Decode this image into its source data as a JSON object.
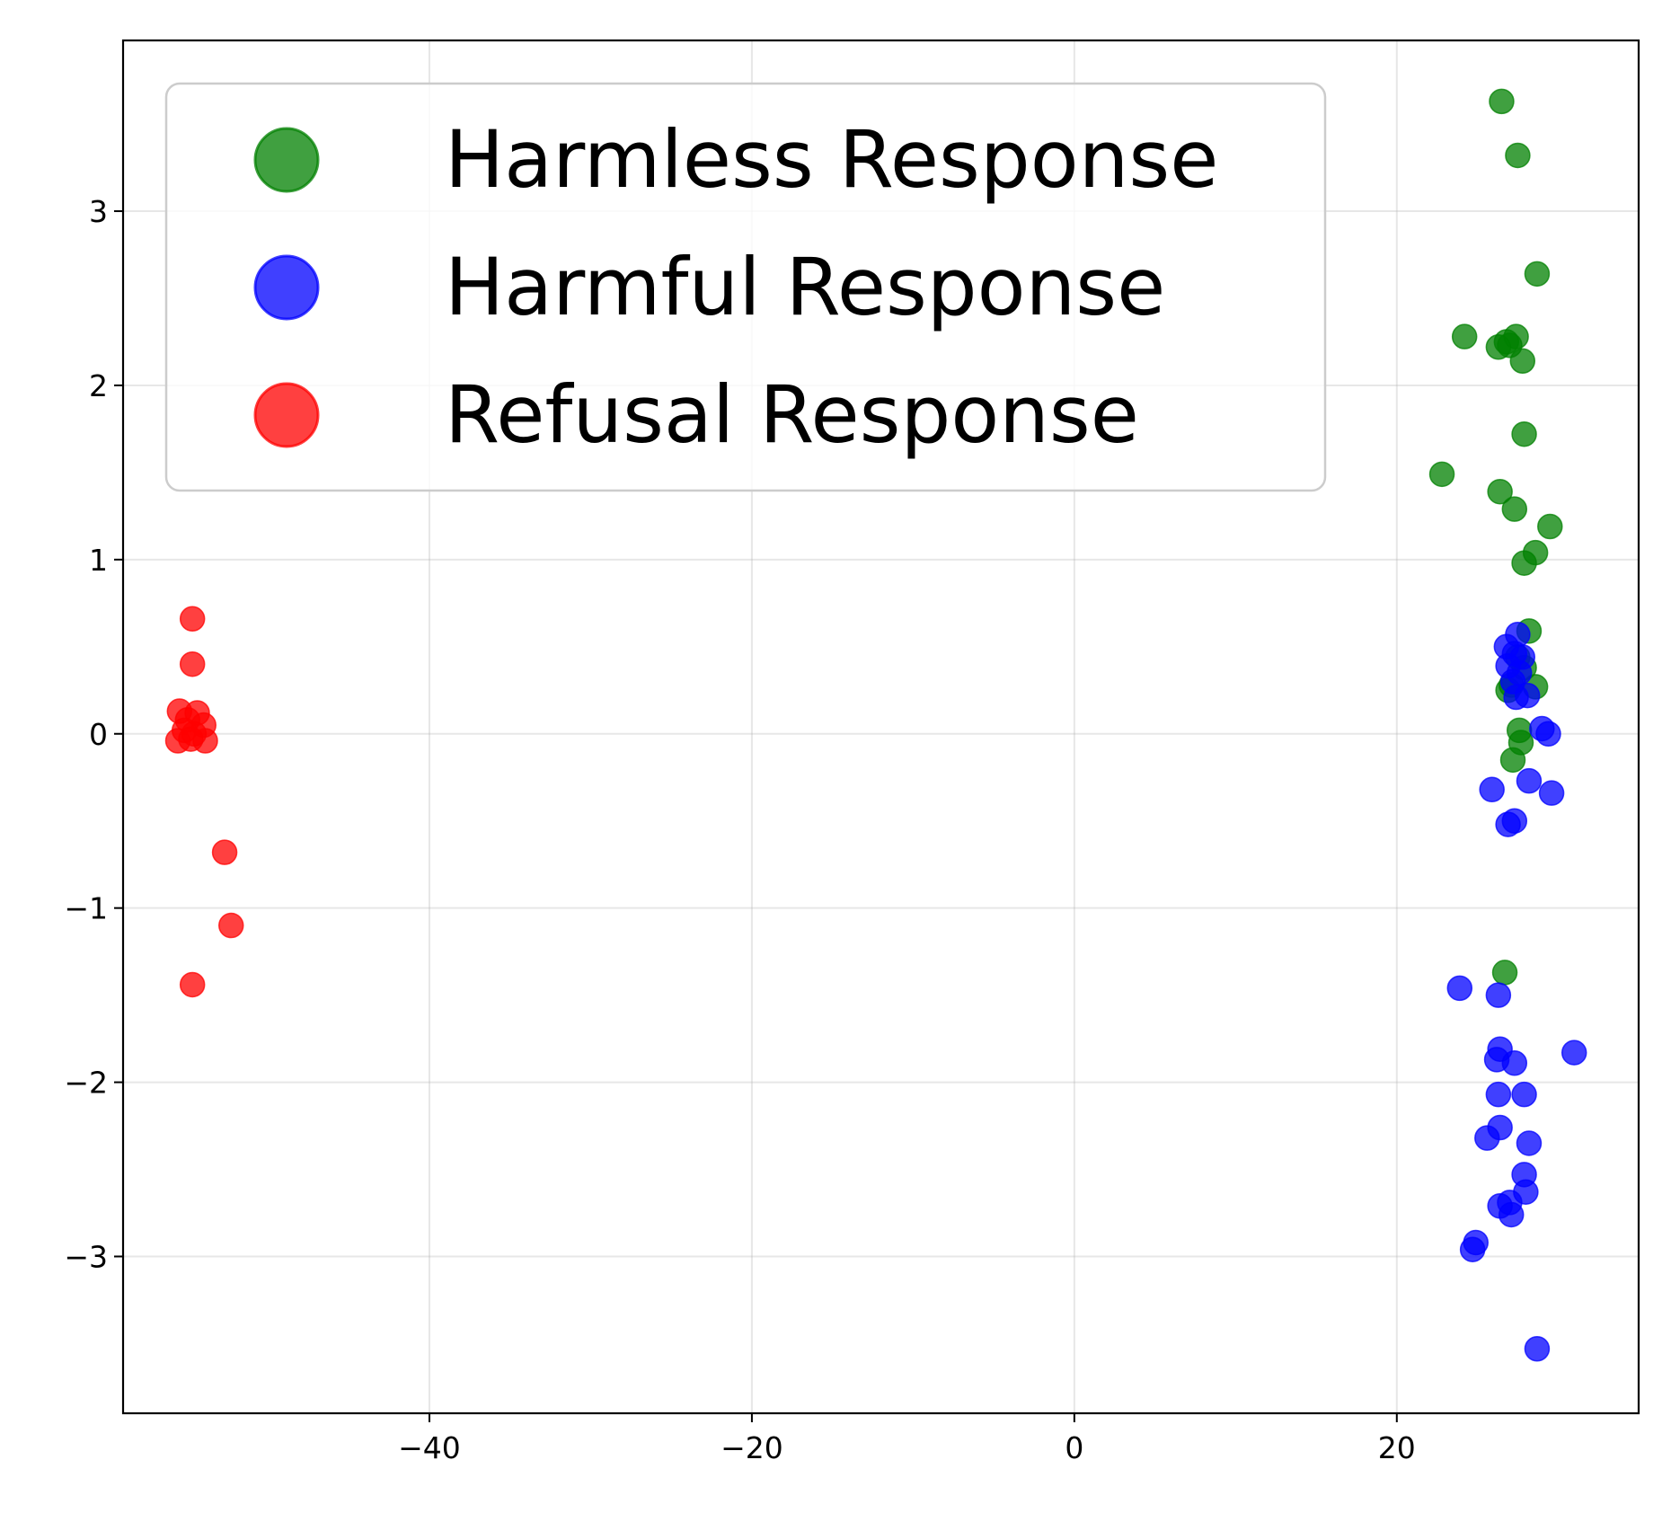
{
  "chart_data": {
    "type": "scatter",
    "title": "",
    "xlabel": "",
    "ylabel": "",
    "xlim": [
      -59,
      35
    ],
    "ylim": [
      -3.9,
      3.98
    ],
    "grid": true,
    "legend_position": "top-left",
    "x_ticks": [
      {
        "value": -40,
        "label": "−40"
      },
      {
        "value": -20,
        "label": "−20"
      },
      {
        "value": 0,
        "label": "0"
      },
      {
        "value": 20,
        "label": "20"
      }
    ],
    "y_ticks": [
      {
        "value": -3,
        "label": "−3"
      },
      {
        "value": -2,
        "label": "−2"
      },
      {
        "value": -1,
        "label": "−1"
      },
      {
        "value": 0,
        "label": "0"
      },
      {
        "value": 1,
        "label": "1"
      },
      {
        "value": 2,
        "label": "2"
      },
      {
        "value": 3,
        "label": "3"
      }
    ],
    "series": [
      {
        "name": "Harmless Response",
        "color": "#008000",
        "points": [
          [
            26.5,
            3.63
          ],
          [
            27.5,
            3.32
          ],
          [
            28.7,
            2.64
          ],
          [
            24.2,
            2.28
          ],
          [
            27.4,
            2.28
          ],
          [
            26.8,
            2.25
          ],
          [
            26.3,
            2.22
          ],
          [
            27.0,
            2.23
          ],
          [
            27.8,
            2.14
          ],
          [
            27.9,
            1.72
          ],
          [
            22.8,
            1.49
          ],
          [
            26.4,
            1.39
          ],
          [
            27.3,
            1.29
          ],
          [
            29.5,
            1.19
          ],
          [
            28.6,
            1.04
          ],
          [
            27.9,
            0.98
          ],
          [
            28.2,
            0.59
          ],
          [
            27.5,
            0.44
          ],
          [
            27.9,
            0.38
          ],
          [
            26.9,
            0.25
          ],
          [
            28.6,
            0.27
          ],
          [
            27.1,
            0.28
          ],
          [
            27.6,
            0.02
          ],
          [
            27.7,
            -0.05
          ],
          [
            27.2,
            -0.15
          ],
          [
            26.7,
            -1.37
          ]
        ]
      },
      {
        "name": "Harmful Response",
        "color": "#0000ff",
        "points": [
          [
            27.5,
            0.57
          ],
          [
            26.8,
            0.5
          ],
          [
            27.3,
            0.46
          ],
          [
            27.8,
            0.44
          ],
          [
            26.9,
            0.39
          ],
          [
            27.6,
            0.35
          ],
          [
            27.2,
            0.3
          ],
          [
            28.1,
            0.22
          ],
          [
            27.4,
            0.21
          ],
          [
            29.0,
            0.03
          ],
          [
            29.4,
            0.0
          ],
          [
            25.9,
            -0.32
          ],
          [
            28.2,
            -0.27
          ],
          [
            29.6,
            -0.34
          ],
          [
            27.3,
            -0.5
          ],
          [
            26.9,
            -0.52
          ],
          [
            23.9,
            -1.46
          ],
          [
            26.3,
            -1.5
          ],
          [
            31.0,
            -1.83
          ],
          [
            26.4,
            -1.81
          ],
          [
            26.2,
            -1.87
          ],
          [
            27.3,
            -1.89
          ],
          [
            26.3,
            -2.07
          ],
          [
            27.9,
            -2.07
          ],
          [
            26.4,
            -2.26
          ],
          [
            25.6,
            -2.32
          ],
          [
            28.2,
            -2.35
          ],
          [
            27.9,
            -2.53
          ],
          [
            28.0,
            -2.63
          ],
          [
            26.4,
            -2.71
          ],
          [
            27.0,
            -2.69
          ],
          [
            27.1,
            -2.76
          ],
          [
            24.9,
            -2.92
          ],
          [
            24.7,
            -2.96
          ],
          [
            28.7,
            -3.53
          ]
        ]
      },
      {
        "name": "Refusal Response",
        "color": "#ff0000",
        "points": [
          [
            -54.7,
            0.66
          ],
          [
            -54.7,
            0.4
          ],
          [
            -55.5,
            0.13
          ],
          [
            -54.4,
            0.12
          ],
          [
            -55.0,
            0.08
          ],
          [
            -54.0,
            0.05
          ],
          [
            -55.2,
            0.02
          ],
          [
            -54.6,
            0.0
          ],
          [
            -55.6,
            -0.04
          ],
          [
            -54.8,
            -0.03
          ],
          [
            -53.9,
            -0.04
          ],
          [
            -52.7,
            -0.68
          ],
          [
            -52.3,
            -1.1
          ],
          [
            -54.7,
            -1.44
          ]
        ]
      }
    ]
  }
}
